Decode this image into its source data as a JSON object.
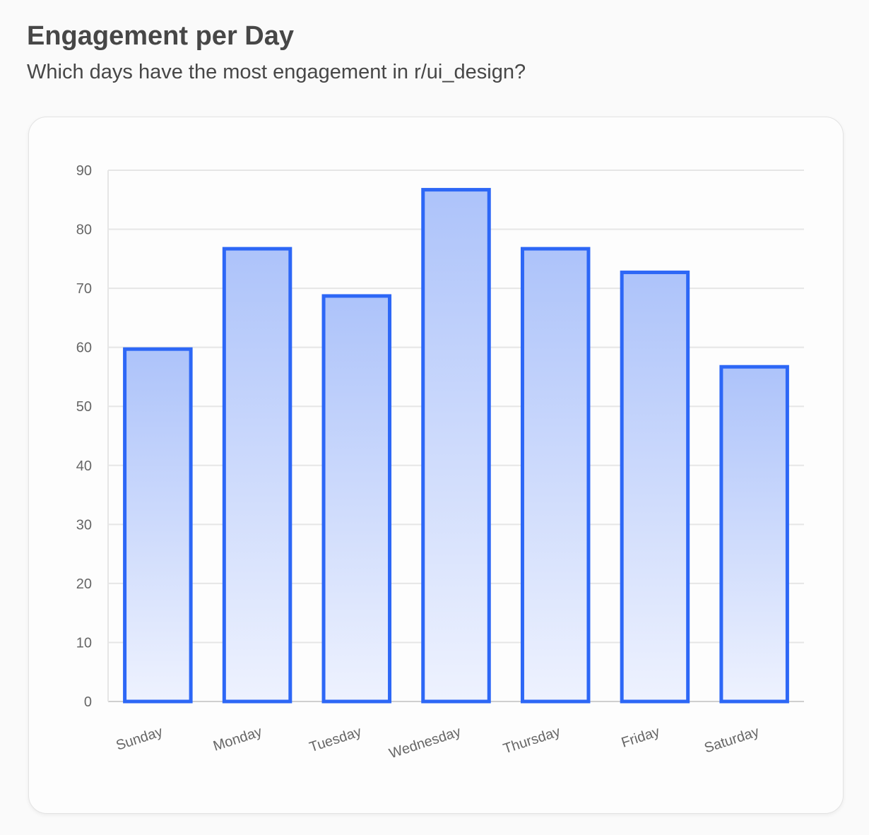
{
  "header": {
    "title": "Engagement per Day",
    "subtitle": "Which days have the most engagement in r/ui_design?"
  },
  "chart_data": {
    "type": "bar",
    "title": "",
    "xlabel": "",
    "ylabel": "",
    "categories": [
      "Sunday",
      "Monday",
      "Tuesday",
      "Wednesday",
      "Thursday",
      "Friday",
      "Saturday"
    ],
    "values": [
      60,
      77,
      69,
      87,
      77,
      73,
      57
    ],
    "ylim": [
      0,
      90
    ],
    "yticks": [
      0,
      10,
      20,
      30,
      40,
      50,
      60,
      70,
      80,
      90
    ],
    "grid": true,
    "legend": "none",
    "colors": {
      "bar_border": "#2d67f6",
      "bar_fill_top": "#adc3fa",
      "bar_fill_bottom": "#eef2fe",
      "grid": "#e6e6e6"
    }
  }
}
